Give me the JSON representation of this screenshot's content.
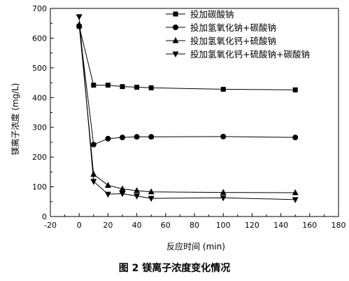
{
  "caption": "图 2  镁离子浓度变化情况",
  "chart_data": {
    "type": "line",
    "xlabel": "反应时间 (min)",
    "ylabel": "镁离子浓度 (mg/L)",
    "xlim": [
      -20,
      180
    ],
    "ylim": [
      0,
      700
    ],
    "xticks": [
      -20,
      0,
      20,
      40,
      60,
      80,
      100,
      120,
      140,
      160,
      180
    ],
    "yticks": [
      0,
      100,
      200,
      300,
      400,
      500,
      600,
      700
    ],
    "grid": false,
    "legend_position": "top-right",
    "series": [
      {
        "name": "投加碳酸钠",
        "marker": "square",
        "x": [
          0,
          10,
          20,
          30,
          40,
          50,
          100,
          150
        ],
        "y": [
          640,
          442,
          442,
          437,
          435,
          433,
          428,
          426
        ]
      },
      {
        "name": "投加氢氧化钠+碳酸钠",
        "marker": "circle",
        "x": [
          0,
          10,
          20,
          30,
          40,
          50,
          100,
          150
        ],
        "y": [
          640,
          242,
          262,
          266,
          268,
          268,
          269,
          266
        ]
      },
      {
        "name": "投加氢氧化钙+硫酸钠",
        "marker": "triangle-up",
        "x": [
          0,
          10,
          20,
          30,
          40,
          50,
          100,
          150
        ],
        "y": [
          645,
          142,
          105,
          93,
          87,
          83,
          81,
          80
        ]
      },
      {
        "name": "投加氢氧化钙+硫酸钠+碳酸钠",
        "marker": "triangle-down",
        "x": [
          0,
          10,
          20,
          30,
          40,
          50,
          100,
          150
        ],
        "y": [
          672,
          118,
          75,
          77,
          69,
          61,
          63,
          57
        ]
      }
    ]
  }
}
